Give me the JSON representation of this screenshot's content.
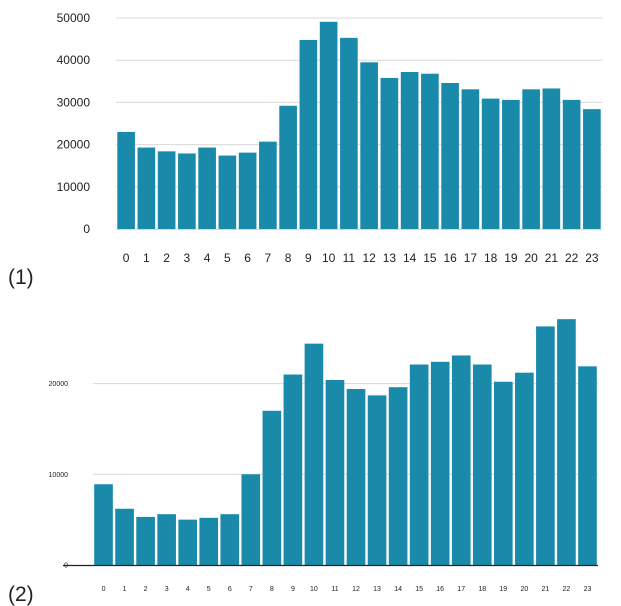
{
  "chart_data": [
    {
      "panel_label": "(1)",
      "type": "bar",
      "categories": [
        "0",
        "1",
        "2",
        "3",
        "4",
        "5",
        "6",
        "7",
        "8",
        "9",
        "10",
        "11",
        "12",
        "13",
        "14",
        "15",
        "16",
        "17",
        "18",
        "19",
        "20",
        "21",
        "22",
        "23"
      ],
      "values": [
        23000,
        19300,
        18400,
        17900,
        19300,
        17400,
        18100,
        20700,
        29200,
        44800,
        49100,
        45300,
        39500,
        35800,
        37200,
        36800,
        34600,
        33100,
        30900,
        30600,
        33100,
        33300,
        30600,
        28400
      ],
      "yticks": [
        0,
        10000,
        20000,
        30000,
        40000,
        50000
      ],
      "ylim": [
        0,
        50000
      ],
      "title": "",
      "xlabel": "",
      "ylabel": "",
      "grid": true,
      "bar_color": "#1a8aab"
    },
    {
      "panel_label": "(2)",
      "type": "bar",
      "categories": [
        "0",
        "1",
        "2",
        "3",
        "4",
        "5",
        "6",
        "7",
        "8",
        "9",
        "10",
        "11",
        "12",
        "13",
        "14",
        "15",
        "16",
        "17",
        "18",
        "19",
        "20",
        "21",
        "22",
        "23"
      ],
      "values": [
        8900,
        6200,
        5300,
        5600,
        5000,
        5200,
        5600,
        10000,
        17000,
        21000,
        24400,
        20400,
        19400,
        18700,
        19600,
        22100,
        22400,
        23100,
        22100,
        20200,
        21200,
        26300,
        27100,
        21900
      ],
      "yticks": [
        0,
        10000,
        20000
      ],
      "ylim": [
        0,
        28000
      ],
      "title": "",
      "xlabel": "",
      "ylabel": "",
      "grid": true,
      "bar_color": "#1a8aab"
    }
  ]
}
